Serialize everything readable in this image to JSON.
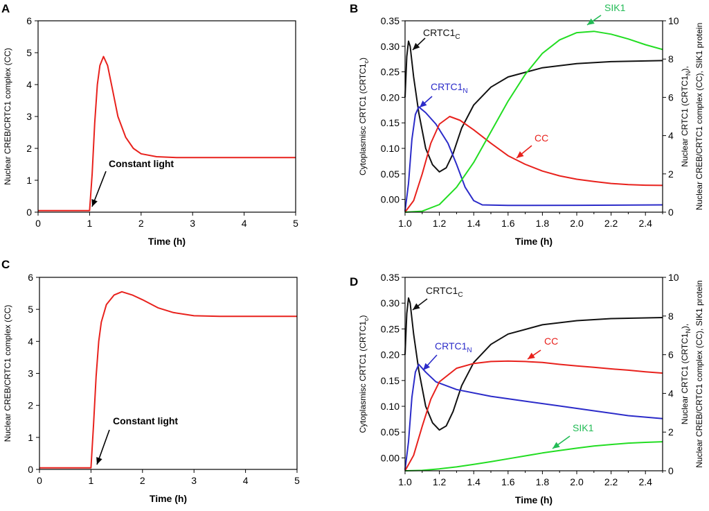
{
  "chart_data": [
    {
      "panel": "A",
      "type": "line",
      "xlabel": "Time (h)",
      "ylabel": "Nuclear CREB/CRTC1 complex (CC)",
      "xlim": [
        0,
        5
      ],
      "ylim": [
        0,
        6
      ],
      "xticks": [
        "0",
        "1",
        "2",
        "3",
        "4",
        "5"
      ],
      "yticks": [
        "0",
        "1",
        "2",
        "3",
        "4",
        "5",
        "6"
      ],
      "series": [
        {
          "name": "CC",
          "color": "#e8211c",
          "points": [
            [
              0,
              0.05
            ],
            [
              1.0,
              0.05
            ],
            [
              1.05,
              1.2
            ],
            [
              1.1,
              2.8
            ],
            [
              1.15,
              4.0
            ],
            [
              1.2,
              4.6
            ],
            [
              1.27,
              4.88
            ],
            [
              1.35,
              4.6
            ],
            [
              1.45,
              3.8
            ],
            [
              1.55,
              3.0
            ],
            [
              1.7,
              2.35
            ],
            [
              1.85,
              2.0
            ],
            [
              2.0,
              1.83
            ],
            [
              2.3,
              1.74
            ],
            [
              2.7,
              1.71
            ],
            [
              3.2,
              1.71
            ],
            [
              4.0,
              1.71
            ],
            [
              5.0,
              1.71
            ]
          ]
        }
      ],
      "annotations": [
        {
          "text": "Constant light",
          "color": "#000000",
          "at_x": 1.02,
          "at_y": 0.08
        }
      ]
    },
    {
      "panel": "B",
      "type": "line",
      "xlabel": "Time (h)",
      "ylabel_left": "Cytoplasmisc CRTC1 (CRTC1",
      "ylabel_left_sub": "c",
      "ylabel_left_end": ")",
      "ylabel_right_line1": "Nuclear CRTC1 (CRTC1",
      "ylabel_right_line1_sub": "N",
      "ylabel_right_line1_end": "),",
      "ylabel_right_line2": "Nuclear CREB/CRTC1 complex (CC), SIK1 protein",
      "xlim": [
        1.0,
        2.5
      ],
      "ylim_left": [
        -0.025,
        0.35
      ],
      "ylim_right": [
        0,
        10
      ],
      "xticks": [
        "1.0",
        "1.2",
        "1.4",
        "1.6",
        "1.8",
        "2.0",
        "2.2",
        "2.4"
      ],
      "yticks_left": [
        "0.00",
        "0.05",
        "0.10",
        "0.15",
        "0.20",
        "0.25",
        "0.30",
        "0.35"
      ],
      "yticks_right": [
        "0",
        "2",
        "4",
        "6",
        "8",
        "10"
      ],
      "series": [
        {
          "name": "CRTC1c",
          "axis": "left",
          "color": "#111111",
          "points": [
            [
              1.0,
              0.2
            ],
            [
              1.01,
              0.28
            ],
            [
              1.02,
              0.31
            ],
            [
              1.03,
              0.3
            ],
            [
              1.05,
              0.24
            ],
            [
              1.08,
              0.17
            ],
            [
              1.12,
              0.1
            ],
            [
              1.16,
              0.068
            ],
            [
              1.2,
              0.054
            ],
            [
              1.24,
              0.062
            ],
            [
              1.28,
              0.09
            ],
            [
              1.33,
              0.14
            ],
            [
              1.4,
              0.185
            ],
            [
              1.5,
              0.22
            ],
            [
              1.6,
              0.24
            ],
            [
              1.8,
              0.258
            ],
            [
              2.0,
              0.266
            ],
            [
              2.2,
              0.27
            ],
            [
              2.5,
              0.272
            ]
          ]
        },
        {
          "name": "CRTC1N",
          "axis": "right",
          "color": "#2b2bc9",
          "points": [
            [
              1.0,
              0.05
            ],
            [
              1.02,
              1.5
            ],
            [
              1.04,
              3.8
            ],
            [
              1.06,
              5.1
            ],
            [
              1.08,
              5.5
            ],
            [
              1.12,
              5.2
            ],
            [
              1.18,
              4.6
            ],
            [
              1.25,
              3.6
            ],
            [
              1.3,
              2.5
            ],
            [
              1.35,
              1.3
            ],
            [
              1.4,
              0.6
            ],
            [
              1.45,
              0.38
            ],
            [
              1.6,
              0.35
            ],
            [
              2.0,
              0.36
            ],
            [
              2.5,
              0.38
            ]
          ]
        },
        {
          "name": "CC",
          "axis": "right",
          "color": "#e8211c",
          "points": [
            [
              1.0,
              0.0
            ],
            [
              1.05,
              0.6
            ],
            [
              1.1,
              2.0
            ],
            [
              1.15,
              3.6
            ],
            [
              1.2,
              4.6
            ],
            [
              1.26,
              5.0
            ],
            [
              1.32,
              4.8
            ],
            [
              1.4,
              4.3
            ],
            [
              1.5,
              3.6
            ],
            [
              1.6,
              2.95
            ],
            [
              1.7,
              2.5
            ],
            [
              1.8,
              2.15
            ],
            [
              1.9,
              1.9
            ],
            [
              2.0,
              1.72
            ],
            [
              2.1,
              1.6
            ],
            [
              2.2,
              1.5
            ],
            [
              2.3,
              1.44
            ],
            [
              2.4,
              1.41
            ],
            [
              2.5,
              1.4
            ]
          ]
        },
        {
          "name": "SIK1",
          "axis": "right",
          "color": "#22dd22",
          "points": [
            [
              1.0,
              0.0
            ],
            [
              1.1,
              0.05
            ],
            [
              1.2,
              0.4
            ],
            [
              1.3,
              1.3
            ],
            [
              1.4,
              2.6
            ],
            [
              1.5,
              4.2
            ],
            [
              1.6,
              5.8
            ],
            [
              1.7,
              7.2
            ],
            [
              1.8,
              8.3
            ],
            [
              1.9,
              9.0
            ],
            [
              2.0,
              9.38
            ],
            [
              2.1,
              9.45
            ],
            [
              2.2,
              9.3
            ],
            [
              2.3,
              9.05
            ],
            [
              2.4,
              8.75
            ],
            [
              2.5,
              8.5
            ]
          ]
        }
      ],
      "annotations": [
        {
          "text": "CRTC1",
          "sub": "C",
          "color": "#111111"
        },
        {
          "text": "CRTC1",
          "sub": "N",
          "color": "#2b2bc9"
        },
        {
          "text": "CC",
          "sub": "",
          "color": "#e8211c"
        },
        {
          "text": "SIK1",
          "sub": "",
          "color": "#22bb55"
        }
      ]
    },
    {
      "panel": "C",
      "type": "line",
      "xlabel": "Time (h)",
      "ylabel": "Nuclear CREB/CRTC1 complex (CC)",
      "xlim": [
        0,
        5
      ],
      "ylim": [
        0,
        6
      ],
      "xticks": [
        "0",
        "1",
        "2",
        "3",
        "4",
        "5"
      ],
      "yticks": [
        "0",
        "1",
        "2",
        "3",
        "4",
        "5",
        "6"
      ],
      "series": [
        {
          "name": "CC",
          "color": "#e8211c",
          "points": [
            [
              0,
              0.05
            ],
            [
              1.0,
              0.05
            ],
            [
              1.05,
              1.4
            ],
            [
              1.1,
              2.9
            ],
            [
              1.15,
              4.0
            ],
            [
              1.2,
              4.6
            ],
            [
              1.3,
              5.15
            ],
            [
              1.45,
              5.45
            ],
            [
              1.6,
              5.55
            ],
            [
              1.8,
              5.45
            ],
            [
              2.0,
              5.3
            ],
            [
              2.3,
              5.05
            ],
            [
              2.6,
              4.9
            ],
            [
              3.0,
              4.8
            ],
            [
              3.5,
              4.78
            ],
            [
              4.0,
              4.78
            ],
            [
              5.0,
              4.78
            ]
          ]
        }
      ],
      "annotations": [
        {
          "text": "Constant light",
          "color": "#000000",
          "at_x": 1.1,
          "at_y": 0.05
        }
      ]
    },
    {
      "panel": "D",
      "type": "line",
      "xlabel": "Time (h)",
      "ylabel_left": "Cytoplasmisc CRTC1 (CRTC1",
      "ylabel_left_sub": "c",
      "ylabel_left_end": ")",
      "ylabel_right_line1": "Nuclear CRTC1 (CRTC1",
      "ylabel_right_line1_sub": "N",
      "ylabel_right_line1_end": "),",
      "ylabel_right_line2": "Nuclear CREB/CRTC1 complex (CC), SIK1 protein",
      "xlim": [
        1.0,
        2.5
      ],
      "ylim_left": [
        -0.025,
        0.35
      ],
      "ylim_right": [
        0,
        10
      ],
      "xticks": [
        "1.0",
        "1.2",
        "1.4",
        "1.6",
        "1.8",
        "2.0",
        "2.2",
        "2.4"
      ],
      "yticks_left": [
        "0.00",
        "0.05",
        "0.10",
        "0.15",
        "0.20",
        "0.25",
        "0.30",
        "0.35"
      ],
      "yticks_right": [
        "0",
        "2",
        "4",
        "6",
        "8",
        "10"
      ],
      "series": [
        {
          "name": "CRTC1c",
          "axis": "left",
          "color": "#111111",
          "points": [
            [
              1.0,
              0.2
            ],
            [
              1.01,
              0.28
            ],
            [
              1.02,
              0.31
            ],
            [
              1.03,
              0.3
            ],
            [
              1.05,
              0.24
            ],
            [
              1.08,
              0.17
            ],
            [
              1.12,
              0.1
            ],
            [
              1.16,
              0.068
            ],
            [
              1.2,
              0.054
            ],
            [
              1.24,
              0.062
            ],
            [
              1.28,
              0.09
            ],
            [
              1.33,
              0.14
            ],
            [
              1.4,
              0.185
            ],
            [
              1.5,
              0.22
            ],
            [
              1.6,
              0.24
            ],
            [
              1.8,
              0.258
            ],
            [
              2.0,
              0.266
            ],
            [
              2.2,
              0.27
            ],
            [
              2.5,
              0.272
            ]
          ]
        },
        {
          "name": "CRTC1N",
          "axis": "right",
          "color": "#2b2bc9",
          "points": [
            [
              1.0,
              0.05
            ],
            [
              1.02,
              1.5
            ],
            [
              1.04,
              3.8
            ],
            [
              1.06,
              5.1
            ],
            [
              1.08,
              5.5
            ],
            [
              1.12,
              5.1
            ],
            [
              1.18,
              4.6
            ],
            [
              1.3,
              4.2
            ],
            [
              1.5,
              3.85
            ],
            [
              1.7,
              3.6
            ],
            [
              1.9,
              3.35
            ],
            [
              2.1,
              3.1
            ],
            [
              2.3,
              2.85
            ],
            [
              2.5,
              2.7
            ]
          ]
        },
        {
          "name": "CC",
          "axis": "right",
          "color": "#e8211c",
          "points": [
            [
              1.0,
              0.0
            ],
            [
              1.05,
              0.8
            ],
            [
              1.1,
              2.3
            ],
            [
              1.15,
              3.7
            ],
            [
              1.2,
              4.6
            ],
            [
              1.3,
              5.3
            ],
            [
              1.4,
              5.55
            ],
            [
              1.5,
              5.65
            ],
            [
              1.6,
              5.67
            ],
            [
              1.7,
              5.65
            ],
            [
              1.8,
              5.6
            ],
            [
              1.9,
              5.5
            ],
            [
              2.0,
              5.42
            ],
            [
              2.1,
              5.35
            ],
            [
              2.2,
              5.27
            ],
            [
              2.3,
              5.2
            ],
            [
              2.4,
              5.12
            ],
            [
              2.5,
              5.05
            ]
          ]
        },
        {
          "name": "SIK1",
          "axis": "right",
          "color": "#22dd22",
          "points": [
            [
              1.0,
              0.0
            ],
            [
              1.1,
              0.02
            ],
            [
              1.2,
              0.1
            ],
            [
              1.3,
              0.2
            ],
            [
              1.4,
              0.33
            ],
            [
              1.5,
              0.47
            ],
            [
              1.6,
              0.62
            ],
            [
              1.7,
              0.77
            ],
            [
              1.8,
              0.92
            ],
            [
              1.9,
              1.05
            ],
            [
              2.0,
              1.17
            ],
            [
              2.1,
              1.28
            ],
            [
              2.2,
              1.36
            ],
            [
              2.3,
              1.43
            ],
            [
              2.4,
              1.47
            ],
            [
              2.5,
              1.5
            ]
          ]
        }
      ],
      "annotations": [
        {
          "text": "CRTC1",
          "sub": "C",
          "color": "#111111"
        },
        {
          "text": "CRTC1",
          "sub": "N",
          "color": "#2b2bc9"
        },
        {
          "text": "CC",
          "sub": "",
          "color": "#e8211c"
        },
        {
          "text": "SIK1",
          "sub": "",
          "color": "#22bb55"
        }
      ]
    }
  ]
}
